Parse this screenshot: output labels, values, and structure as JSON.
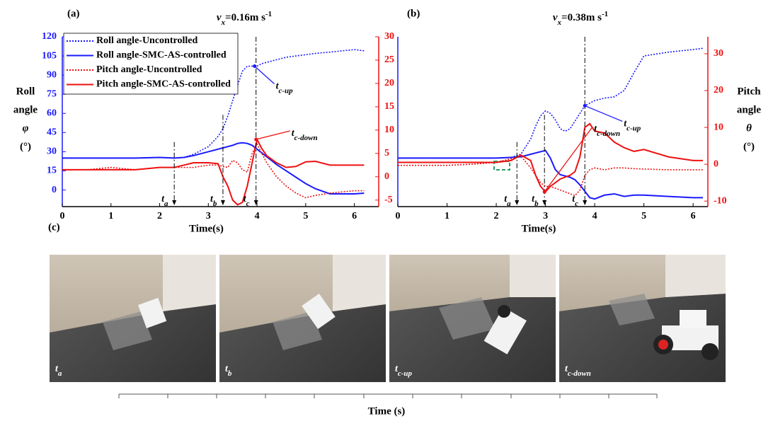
{
  "chart_data": [
    {
      "type": "line",
      "panel": "(a)",
      "title": {
        "var": "v",
        "sub": "x",
        "text": "=0.16m s",
        "sup": "-1"
      },
      "xlabel": "Time(s)",
      "ylabel": [
        "Roll",
        "angle",
        "φ",
        "(°)"
      ],
      "ycolor": "#1a1aff",
      "y2color": "#ee1111",
      "xlim": [
        0,
        6.5
      ],
      "xticks": [
        0,
        1,
        2,
        3,
        4,
        5,
        6
      ],
      "ylim": [
        -13,
        120
      ],
      "yticks": [
        0,
        15,
        30,
        45,
        60,
        75,
        90,
        105,
        120
      ],
      "y2lim": [
        -6.4,
        30
      ],
      "y2ticks": [
        -5,
        0,
        5,
        10,
        15,
        20,
        25,
        30
      ],
      "legend": "upper left",
      "x": [
        0,
        0.5,
        1,
        1.5,
        2,
        2.3,
        2.5,
        2.7,
        3,
        3.2,
        3.3,
        3.4,
        3.5,
        3.6,
        3.7,
        3.8,
        3.9,
        4,
        4.1,
        4.2,
        4.4,
        4.6,
        4.8,
        5,
        5.2,
        5.5,
        6,
        6.2
      ],
      "series": [
        {
          "name": "Roll angle-Uncontrolled",
          "color": "#1a1aff",
          "style": "dotted",
          "axis": "y",
          "values": [
            25,
            25,
            25,
            25,
            25.5,
            25,
            25.5,
            28,
            34,
            42,
            48,
            58,
            70,
            82,
            93,
            97,
            97,
            97,
            99,
            100,
            102,
            104,
            105,
            106,
            107,
            108,
            110,
            109
          ]
        },
        {
          "name": "Roll angle-SMC-AS-controlled",
          "color": "#1a1aff",
          "style": "solid",
          "axis": "y",
          "values": [
            25,
            25,
            25,
            25,
            25.5,
            25,
            25.5,
            27,
            30,
            32,
            33,
            34,
            35,
            36.5,
            37,
            36.5,
            35,
            32,
            29,
            26,
            20,
            15,
            10,
            5,
            1,
            -3,
            -3,
            -2.5
          ]
        },
        {
          "name": "Pitch angle-Uncontrolled",
          "color": "#ee1111",
          "style": "dotted",
          "axis": "y2",
          "values": [
            1.5,
            1.5,
            2,
            1.5,
            2,
            2,
            2,
            2,
            2.5,
            2.5,
            2.2,
            2,
            3.5,
            3,
            1.5,
            1,
            5,
            7,
            5,
            3,
            0,
            -2,
            -3.5,
            -4.5,
            -4,
            -3.5,
            -3,
            -3
          ]
        },
        {
          "name": "Pitch angle-SMC-AS-controlled",
          "color": "#ee1111",
          "style": "solid",
          "axis": "y2",
          "values": [
            1.5,
            1.5,
            1.5,
            1.5,
            2,
            2,
            2.5,
            3,
            3,
            2.8,
            0,
            -2,
            -5,
            -6,
            -5.5,
            -2,
            3,
            8,
            6,
            4.5,
            3,
            2,
            2.2,
            3.2,
            3.3,
            2.5,
            2.5,
            2.5
          ]
        }
      ],
      "markers": [
        {
          "text": "t",
          "sub": "a",
          "x": 2.3
        },
        {
          "text": "t",
          "sub": "b",
          "x": 3.3
        },
        {
          "text": "t",
          "sub": "c",
          "x": 3.98
        }
      ],
      "callouts": [
        {
          "text": "t",
          "sub": "c-up",
          "x": 3.95,
          "y": 97,
          "axis": "y",
          "color": "#1a1aff"
        },
        {
          "text": "t",
          "sub": "c-down",
          "x": 3.98,
          "y": 8,
          "axis": "y2",
          "color": "#ee1111"
        }
      ]
    },
    {
      "type": "line",
      "panel": "(b)",
      "title": {
        "var": "v",
        "sub": "x",
        "text": "=0.38m s",
        "sup": "-1"
      },
      "xlabel": "Time(s)",
      "y2label": [
        "Pitch",
        "angle",
        "θ",
        "(°)"
      ],
      "ycolor": "#1a1aff",
      "y2color": "#ee1111",
      "xlim": [
        0,
        6.3
      ],
      "xticks": [
        0,
        1,
        2,
        3,
        4,
        5,
        6
      ],
      "ylim": [
        -13,
        120
      ],
      "y2lim": [
        -11.5,
        34.6
      ],
      "y2ticks": [
        -10,
        0,
        10,
        20,
        30
      ],
      "x": [
        0,
        0.5,
        1,
        1.5,
        2,
        2.3,
        2.5,
        2.7,
        2.8,
        2.9,
        3,
        3.1,
        3.2,
        3.3,
        3.4,
        3.5,
        3.6,
        3.7,
        3.8,
        3.9,
        4,
        4.2,
        4.4,
        4.6,
        4.8,
        5,
        5.5,
        6,
        6.2
      ],
      "series": [
        {
          "color": "#1a1aff",
          "style": "dotted",
          "axis": "y",
          "values": [
            25,
            25,
            25,
            25,
            25,
            25.5,
            28,
            40,
            50,
            58,
            62,
            60,
            55,
            48,
            46,
            48,
            54,
            60,
            66,
            68,
            70,
            72,
            73,
            78,
            92,
            105,
            108,
            110,
            111
          ]
        },
        {
          "color": "#1a1aff",
          "style": "solid",
          "axis": "y",
          "values": [
            25,
            25,
            25,
            25,
            25,
            25.5,
            26,
            28,
            29,
            30,
            31,
            25,
            16,
            12,
            11,
            10,
            8,
            4,
            -1,
            -6,
            -7,
            -4,
            -3,
            -5,
            -4,
            -4,
            -5,
            -6,
            -6
          ]
        },
        {
          "color": "#ee1111",
          "style": "dotted",
          "axis": "y2",
          "values": [
            -0.3,
            -0.3,
            -0.3,
            0,
            0.5,
            1.5,
            2.2,
            -1,
            -3,
            -5,
            -6,
            -6,
            -6.5,
            -7,
            -7.5,
            -8,
            -8.5,
            -7,
            -3,
            -1.5,
            -1,
            -1.5,
            -1,
            -1,
            -1.2,
            -1.3,
            -1.5,
            -1.5,
            -1.5
          ]
        },
        {
          "color": "#ee1111",
          "style": "solid",
          "axis": "y2",
          "values": [
            0.5,
            0.5,
            0.5,
            0.5,
            0.5,
            1,
            2.5,
            1,
            -3,
            -6,
            -7.5,
            -6,
            -5,
            -4,
            -3.5,
            -3,
            -2,
            2,
            10,
            11,
            9,
            8.5,
            6,
            4.5,
            3.5,
            4,
            2,
            1,
            1
          ]
        }
      ],
      "markers": [
        {
          "text": "t",
          "sub": "a",
          "x": 2.42
        },
        {
          "text": "t",
          "sub": "b",
          "x": 2.98
        },
        {
          "text": "t",
          "sub": "c",
          "x": 3.8
        }
      ],
      "callouts": [
        {
          "text": "t",
          "sub": "c-up",
          "x": 3.8,
          "y": 66,
          "axis": "y",
          "color": "#1a1aff"
        },
        {
          "text": "t",
          "sub": "c-down",
          "x": 2.98,
          "y": -7.5,
          "axis": "y2",
          "color": "#ee1111"
        }
      ]
    }
  ],
  "panel_c": {
    "label": "(c)",
    "photos": [
      {
        "text": "t",
        "sub": "a"
      },
      {
        "text": "t",
        "sub": "b"
      },
      {
        "text": "t",
        "sub": "c-up"
      },
      {
        "text": "t",
        "sub": "c-down"
      }
    ],
    "axis_label": "Time (s)"
  }
}
